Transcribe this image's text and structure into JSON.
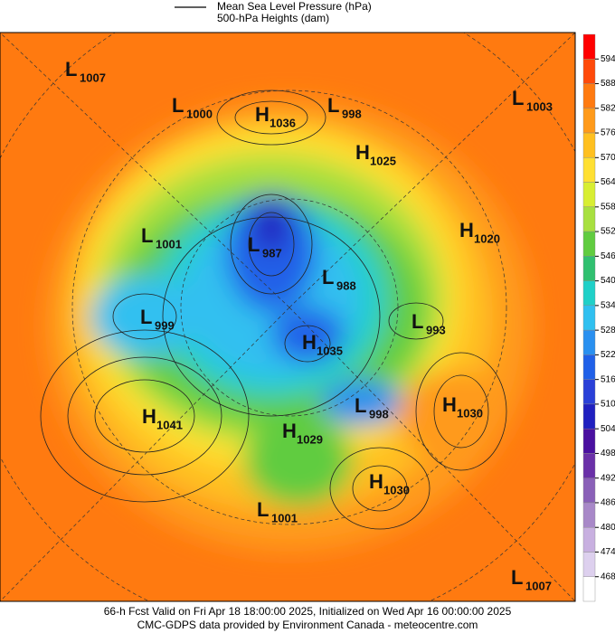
{
  "header": {
    "legend": [
      "Mean Sea Level Pressure (hPa)",
      "500-hPa Heights (dam)"
    ]
  },
  "colorbar": {
    "levels": [
      594,
      588,
      582,
      576,
      570,
      564,
      558,
      552,
      546,
      540,
      534,
      528,
      522,
      516,
      510,
      504,
      498,
      492,
      486,
      480,
      474,
      468
    ],
    "colors": [
      "#ff0000",
      "#ff4a0a",
      "#ff7a10",
      "#ff9a1a",
      "#ffc020",
      "#ffe033",
      "#d8ee33",
      "#a8e040",
      "#60cc40",
      "#30c070",
      "#20d0c8",
      "#30c0f0",
      "#2a90f0",
      "#2060e8",
      "#2a40d8",
      "#2020c0",
      "#4a10a0",
      "#6a30a8",
      "#8a60b8",
      "#a888c8",
      "#c8b0e0",
      "#ddd0ee",
      "#ffffff"
    ]
  },
  "systems": [
    {
      "type": "L",
      "value": 1007
    },
    {
      "type": "L",
      "value": 1000
    },
    {
      "type": "H",
      "value": 1036
    },
    {
      "type": "L",
      "value": 998
    },
    {
      "type": "L",
      "value": 1003
    },
    {
      "type": "H",
      "value": 1025
    },
    {
      "type": "L",
      "value": 1001
    },
    {
      "type": "L",
      "value": 987
    },
    {
      "type": "H",
      "value": 1020
    },
    {
      "type": "L",
      "value": 988
    },
    {
      "type": "L",
      "value": 999
    },
    {
      "type": "L",
      "value": 993
    },
    {
      "type": "H",
      "value": 1035
    },
    {
      "type": "H",
      "value": 1041
    },
    {
      "type": "L",
      "value": 998
    },
    {
      "type": "H",
      "value": 1030
    },
    {
      "type": "H",
      "value": 1029
    },
    {
      "type": "H",
      "value": 1030
    },
    {
      "type": "L",
      "value": 1001
    },
    {
      "type": "L",
      "value": 1007
    }
  ],
  "footer": [
    "66-h Fcst Valid on Fri Apr 18 18:00:00 2025, Initialized on Wed Apr 16 00:00:00 2025",
    "CMC-GDPS data provided by Environment Canada - meteocentre.com"
  ]
}
